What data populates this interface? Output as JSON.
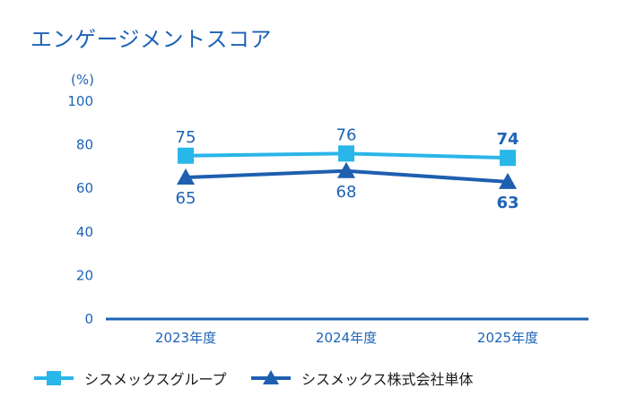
{
  "page": {
    "title": "エンゲージメントスコア"
  },
  "chart_data": {
    "type": "line",
    "unit_label": "(%)",
    "categories": [
      "2023年度",
      "2024年度",
      "2025年度"
    ],
    "ylim": [
      0,
      100
    ],
    "yticks": [
      0,
      20,
      40,
      60,
      80,
      100
    ],
    "grid": false,
    "legend_position": "bottom-left",
    "series": [
      {
        "name": "シスメックスグループ",
        "values": [
          75,
          76,
          74
        ],
        "marker": "square",
        "color": "#29b6e8",
        "label_position": "above"
      },
      {
        "name": "シスメックス株式会社単体",
        "values": [
          65,
          68,
          63
        ],
        "marker": "triangle",
        "color": "#1e5fb0",
        "label_position": "below"
      }
    ],
    "label_emphasis": [
      {
        "series": 0,
        "point": 2,
        "bold": true
      },
      {
        "series": 1,
        "point": 2,
        "bold": true
      }
    ],
    "colors": {
      "axis": "#1e63b6",
      "tick_text": "#1e63b6",
      "label_text": "#1e63b6"
    }
  }
}
